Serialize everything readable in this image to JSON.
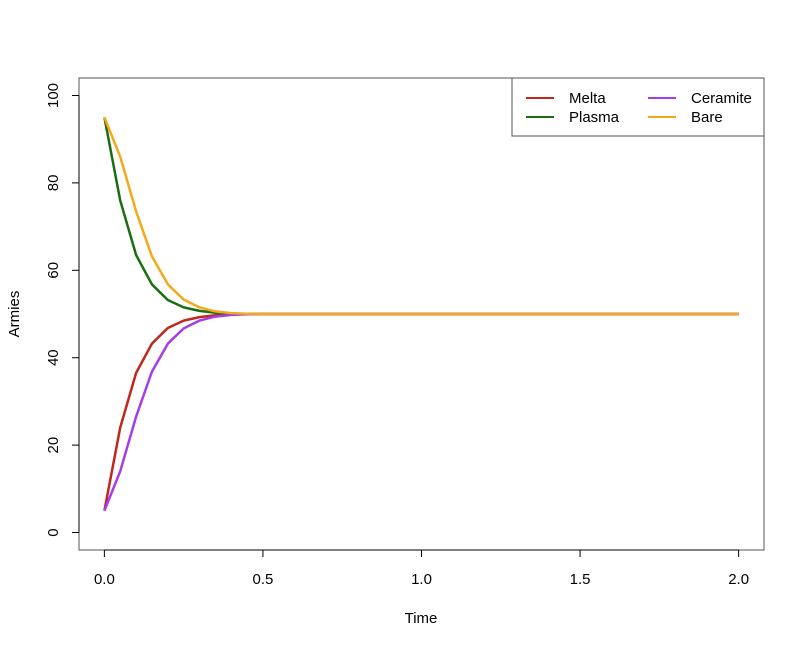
{
  "chart_data": {
    "type": "line",
    "title": "",
    "xlabel": "Time",
    "ylabel": "Armies",
    "xlim": [
      -0.08,
      2.08
    ],
    "ylim": [
      -4,
      104
    ],
    "x_ticks": [
      0.0,
      0.5,
      1.0,
      1.5,
      2.0
    ],
    "x_tick_labels": [
      "0.0",
      "0.5",
      "1.0",
      "1.5",
      "2.0"
    ],
    "y_ticks": [
      0,
      20,
      40,
      60,
      80,
      100
    ],
    "y_tick_labels": [
      "0",
      "20",
      "40",
      "60",
      "80",
      "100"
    ],
    "grid": false,
    "legend_position": "top-right",
    "x": [
      0.0,
      0.05,
      0.1,
      0.15,
      0.2,
      0.25,
      0.3,
      0.35,
      0.4,
      0.45,
      0.5,
      0.6,
      0.8,
      1.0,
      1.5,
      2.0
    ],
    "series": [
      {
        "name": "Melta",
        "color": "#c0281b",
        "values": [
          5,
          24,
          36.5,
          43.2,
          46.8,
          48.5,
          49.3,
          49.7,
          49.9,
          50,
          50,
          50,
          50,
          50,
          50,
          50
        ]
      },
      {
        "name": "Plasma",
        "color": "#1b6d12",
        "values": [
          95,
          76,
          63.5,
          56.8,
          53.2,
          51.5,
          50.7,
          50.3,
          50.1,
          50,
          50,
          50,
          50,
          50,
          50,
          50
        ]
      },
      {
        "name": "Ceramite",
        "color": "#a63de6",
        "values": [
          5,
          14,
          26.5,
          36.8,
          43.2,
          46.7,
          48.5,
          49.4,
          49.8,
          49.95,
          50,
          50,
          50,
          50,
          50,
          50
        ]
      },
      {
        "name": "Bare",
        "color": "#f5a818",
        "values": [
          95,
          86,
          73.5,
          63.2,
          56.8,
          53.3,
          51.5,
          50.6,
          50.2,
          50.05,
          50,
          50,
          50,
          50,
          50,
          50
        ]
      }
    ]
  }
}
